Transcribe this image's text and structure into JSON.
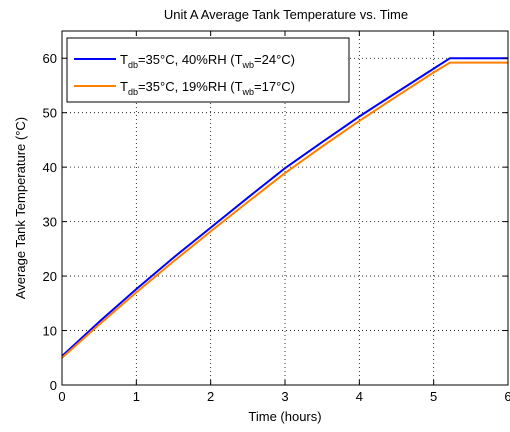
{
  "chart_data": {
    "type": "line",
    "title": "Unit A Average Tank Temperature vs. Time",
    "xlabel": "Time (hours)",
    "ylabel": "Average Tank Temperature (°C)",
    "xlim": [
      0,
      6
    ],
    "ylim": [
      0,
      65
    ],
    "xticks": [
      "0",
      "1",
      "2",
      "3",
      "4",
      "5",
      "6"
    ],
    "yticks": [
      "0",
      "10",
      "20",
      "30",
      "40",
      "50",
      "60"
    ],
    "grid": true,
    "legend_position": "top-left",
    "series": [
      {
        "name": "T_db=35°C, 40%RH (T_wb=24°C)",
        "label_parts": {
          "t1": "T",
          "s1": "db",
          "m": "=35°C, 40%RH (T",
          "s2": "wb",
          "e": "=24°C)"
        },
        "color": "#0000ff",
        "x": [
          0,
          0.5,
          1,
          1.5,
          2,
          2.5,
          3,
          3.5,
          4,
          4.5,
          5,
          5.22,
          6
        ],
        "y": [
          5.3,
          11.6,
          17.6,
          23.4,
          28.9,
          34.4,
          39.8,
          44.6,
          49.3,
          53.7,
          58.1,
          60.0,
          60.0
        ]
      },
      {
        "name": "T_db=35°C, 19%RH (T_wb=17°C)",
        "label_parts": {
          "t1": "T",
          "s1": "db",
          "m": "=35°C, 19%RH (T",
          "s2": "wb",
          "e": "=17°C)"
        },
        "color": "#ff8000",
        "x": [
          0,
          0.5,
          1,
          1.5,
          2,
          2.5,
          3,
          3.5,
          4,
          4.5,
          5,
          5.22,
          6
        ],
        "y": [
          5.0,
          11.1,
          17.0,
          22.7,
          28.2,
          33.6,
          38.9,
          43.8,
          48.5,
          53.0,
          57.4,
          59.2,
          59.2
        ]
      }
    ]
  }
}
